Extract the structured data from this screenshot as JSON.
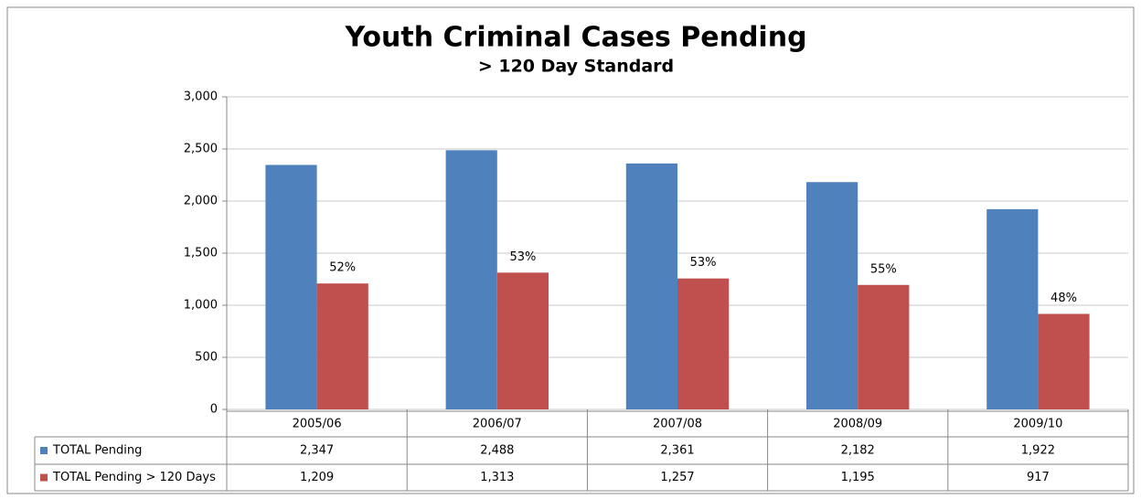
{
  "chart_data": {
    "type": "bar",
    "title": "Youth Criminal Cases Pending",
    "subtitle": "> 120 Day Standard",
    "categories": [
      "2005/06",
      "2006/07",
      "2007/08",
      "2008/09",
      "2009/10"
    ],
    "series": [
      {
        "name": "TOTAL Pending",
        "color": "#4f81bd",
        "values": [
          2347,
          2488,
          2361,
          2182,
          1922
        ],
        "value_labels": [
          "2,347",
          "2,488",
          "2,361",
          "2,182",
          "1,922"
        ]
      },
      {
        "name": "TOTAL Pending > 120 Days",
        "color": "#c0504d",
        "values": [
          1209,
          1313,
          1257,
          1195,
          917
        ],
        "value_labels": [
          "1,209",
          "1,313",
          "1,257",
          "1,195",
          "917"
        ]
      }
    ],
    "annotations": [
      "52%",
      "53%",
      "53%",
      "55%",
      "48%"
    ],
    "ylim": [
      0,
      3000
    ],
    "yticks": [
      0,
      500,
      {
        "value": 1000,
        "label": "1,000"
      },
      {
        "value": 1500,
        "label": "1,500"
      },
      {
        "value": 2000,
        "label": "2,000"
      },
      {
        "value": 2500,
        "label": "2,500"
      },
      {
        "value": 3000,
        "label": "3,000"
      }
    ],
    "grid": true
  }
}
